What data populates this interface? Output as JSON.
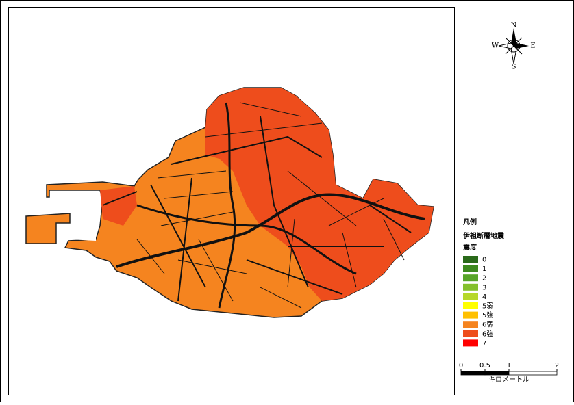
{
  "legend": {
    "title": "凡例",
    "subtitle": "伊祖断層地震",
    "heading": "震度",
    "items": [
      {
        "label": "0",
        "color": "#2a6a1a"
      },
      {
        "label": "1",
        "color": "#3d8a1e"
      },
      {
        "label": "2",
        "color": "#57a528"
      },
      {
        "label": "3",
        "color": "#84c02c"
      },
      {
        "label": "4",
        "color": "#b6d82a"
      },
      {
        "label": "5弱",
        "color": "#ffff00"
      },
      {
        "label": "5強",
        "color": "#ffc000"
      },
      {
        "label": "6弱",
        "color": "#f5841f"
      },
      {
        "label": "6強",
        "color": "#ee4d1c"
      },
      {
        "label": "7",
        "color": "#ff0000"
      }
    ]
  },
  "scale_bar": {
    "ticks": [
      0,
      0.5,
      1,
      2
    ],
    "unit": "キロメートル"
  },
  "compass": {
    "n": "N",
    "s": "S",
    "e": "E",
    "w": "W"
  }
}
